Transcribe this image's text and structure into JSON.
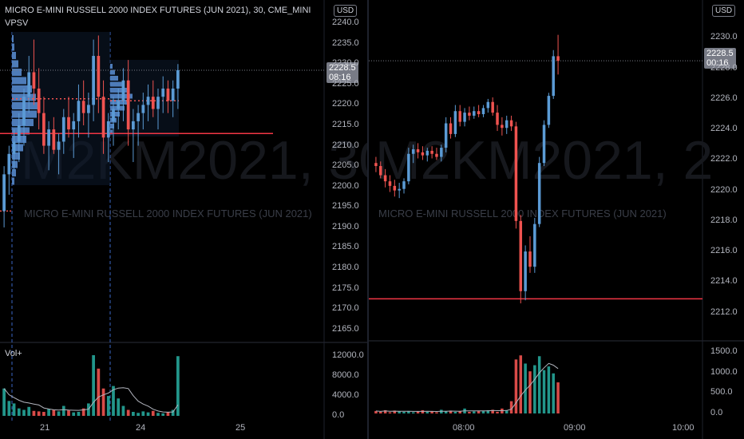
{
  "left": {
    "title": "MICRO E-MINI RUSSELL 2000 INDEX FUTURES (JUN 2021), 30, CME_MINI",
    "indicator": "VPSV",
    "volume_label": "Vol+",
    "currency": "USD",
    "watermark_big": "M2KM2021, 30",
    "watermark_small": "MICRO E-MINI RUSSELL 2000 INDEX FUTURES (JUN 2021)",
    "last_price": "2228.5",
    "countdown": "08:16",
    "price_ticks": [
      "2240.0",
      "2235.0",
      "2230.0",
      "2225.0",
      "2220.0",
      "2215.0",
      "2210.0",
      "2205.0",
      "2200.0",
      "2195.0",
      "2190.0",
      "2185.0",
      "2180.0",
      "2175.0",
      "2170.0",
      "2165.0"
    ],
    "volume_ticks": [
      "12000.0",
      "8000.0",
      "4000.0",
      "0.0"
    ],
    "time_ticks": [
      "21",
      "24",
      "25"
    ],
    "colors": {
      "up": "#5b9bd5",
      "down": "#ef5350",
      "line": "#f23645",
      "vol_up": "#26a69a",
      "vol_down": "#ef5350"
    }
  },
  "right": {
    "currency": "USD",
    "watermark_big": "M2KM2021, 2",
    "watermark_small": "MICRO E-MINI RUSSELL 2000 INDEX FUTURES (JUN 2021)",
    "last_price": "2228.5",
    "countdown": "00:16",
    "price_ticks": [
      "2230.0",
      "2228.0",
      "2226.0",
      "2224.0",
      "2222.0",
      "2220.0",
      "2218.0",
      "2216.0",
      "2214.0",
      "2212.0"
    ],
    "volume_ticks": [
      "1500.0",
      "1000.0",
      "500.0",
      "0.0"
    ],
    "time_ticks": [
      "08:00",
      "09:00",
      "10:00"
    ]
  },
  "chart_data": [
    {
      "type": "candlestick",
      "title": "MICRO E-MINI RUSSELL 2000 INDEX FUTURES (JUN 2021), 30, CME_MINI",
      "x_ticks": [
        "21",
        "24",
        "25"
      ],
      "ylim": [
        2163,
        2241
      ],
      "y_ticks": [
        2240,
        2235,
        2230,
        2225,
        2220,
        2215,
        2210,
        2205,
        2200,
        2195,
        2190,
        2185,
        2180,
        2175,
        2170,
        2165
      ],
      "horizontal_line": 2213,
      "last_price": 2228.5,
      "candles": [
        [
          2194,
          2205,
          2190,
          2203
        ],
        [
          2203,
          2210,
          2198,
          2208
        ],
        [
          2208,
          2214,
          2204,
          2211
        ],
        [
          2211,
          2218,
          2206,
          2215
        ],
        [
          2215,
          2224,
          2210,
          2222
        ],
        [
          2222,
          2232,
          2218,
          2228
        ],
        [
          2228,
          2236,
          2220,
          2224
        ],
        [
          2224,
          2229,
          2214,
          2218
        ],
        [
          2218,
          2222,
          2208,
          2210
        ],
        [
          2210,
          2216,
          2204,
          2214
        ],
        [
          2214,
          2217,
          2208,
          2209
        ],
        [
          2209,
          2213,
          2203,
          2211
        ],
        [
          2211,
          2219,
          2208,
          2217
        ],
        [
          2217,
          2222,
          2212,
          2214
        ],
        [
          2214,
          2218,
          2207,
          2216
        ],
        [
          2216,
          2225,
          2212,
          2221
        ],
        [
          2221,
          2226,
          2215,
          2218
        ],
        [
          2218,
          2223,
          2212,
          2220
        ],
        [
          2220,
          2236,
          2216,
          2232
        ],
        [
          2232,
          2237,
          2218,
          2222
        ],
        [
          2222,
          2226,
          2208,
          2212
        ],
        [
          2212,
          2218,
          2206,
          2216
        ],
        [
          2216,
          2222,
          2210,
          2219
        ],
        [
          2219,
          2224,
          2214,
          2221
        ],
        [
          2221,
          2229,
          2216,
          2226
        ],
        [
          2226,
          2231,
          2210,
          2214
        ],
        [
          2214,
          2219,
          2206,
          2216
        ],
        [
          2216,
          2220,
          2210,
          2218
        ],
        [
          2218,
          2223,
          2214,
          2220
        ],
        [
          2220,
          2225,
          2216,
          2222
        ],
        [
          2222,
          2226,
          2217,
          2219
        ],
        [
          2219,
          2224,
          2214,
          2222
        ],
        [
          2222,
          2227,
          2218,
          2224
        ],
        [
          2224,
          2226,
          2218,
          2221
        ],
        [
          2221,
          2226,
          2217,
          2224
        ],
        [
          2224,
          2230,
          2219,
          2228.5
        ]
      ],
      "volume": {
        "ylim": [
          0,
          13000
        ],
        "y_ticks": [
          12000,
          8000,
          4000,
          0
        ],
        "values": [
          5500,
          3000,
          2500,
          1500,
          1200,
          1800,
          1000,
          900,
          800,
          1400,
          1200,
          900,
          2000,
          1100,
          700,
          800,
          1500,
          2500,
          12200,
          9500,
          5500,
          4000,
          6000,
          3500,
          2000,
          1200,
          800,
          600,
          900,
          700,
          1000,
          600,
          500,
          800,
          1200,
          12000
        ]
      }
    },
    {
      "type": "candlestick",
      "x_ticks": [
        "08:00",
        "09:00",
        "10:00"
      ],
      "ylim": [
        2211.4,
        2230.6
      ],
      "y_ticks": [
        2230,
        2228,
        2226,
        2224,
        2222,
        2220,
        2218,
        2216,
        2214,
        2212
      ],
      "horizontal_line": 2212.9,
      "last_price": 2228.5,
      "candles": [
        [
          2221.8,
          2222.2,
          2221.2,
          2221.6
        ],
        [
          2221.6,
          2221.9,
          2220.8,
          2221.0
        ],
        [
          2221.0,
          2221.4,
          2220.2,
          2220.6
        ],
        [
          2220.6,
          2221.0,
          2219.9,
          2220.3
        ],
        [
          2220.3,
          2220.7,
          2219.6,
          2220.0
        ],
        [
          2220.0,
          2220.5,
          2219.5,
          2220.1
        ],
        [
          2220.1,
          2220.8,
          2219.8,
          2220.6
        ],
        [
          2220.6,
          2222.8,
          2220.4,
          2222.4
        ],
        [
          2222.4,
          2223.0,
          2221.8,
          2222.7
        ],
        [
          2222.7,
          2223.1,
          2222.1,
          2222.5
        ],
        [
          2222.5,
          2222.9,
          2222.0,
          2222.3
        ],
        [
          2222.3,
          2222.8,
          2221.9,
          2222.6
        ],
        [
          2222.6,
          2222.9,
          2222.1,
          2222.4
        ],
        [
          2222.4,
          2222.8,
          2222.0,
          2222.2
        ],
        [
          2222.2,
          2223.0,
          2221.9,
          2222.8
        ],
        [
          2222.8,
          2224.8,
          2222.5,
          2224.4
        ],
        [
          2224.4,
          2224.8,
          2223.4,
          2223.7
        ],
        [
          2223.7,
          2225.6,
          2223.5,
          2225.2
        ],
        [
          2225.2,
          2225.6,
          2224.2,
          2224.5
        ],
        [
          2224.5,
          2225.4,
          2224.2,
          2225.1
        ],
        [
          2225.1,
          2225.5,
          2224.6,
          2224.9
        ],
        [
          2224.9,
          2225.5,
          2224.7,
          2225.2
        ],
        [
          2225.2,
          2225.6,
          2224.8,
          2225.0
        ],
        [
          2225.0,
          2225.6,
          2224.8,
          2225.4
        ],
        [
          2225.4,
          2226.0,
          2225.1,
          2225.8
        ],
        [
          2225.8,
          2226.1,
          2224.9,
          2225.1
        ],
        [
          2225.1,
          2225.6,
          2223.9,
          2224.3
        ],
        [
          2224.3,
          2224.8,
          2223.6,
          2224.1
        ],
        [
          2224.1,
          2224.9,
          2223.7,
          2224.6
        ],
        [
          2224.6,
          2224.9,
          2223.9,
          2224.2
        ],
        [
          2224.2,
          2224.5,
          2217.5,
          2218.0
        ],
        [
          2218.0,
          2218.4,
          2212.6,
          2213.4
        ],
        [
          2213.4,
          2216.4,
          2212.8,
          2216.0
        ],
        [
          2216.0,
          2217.0,
          2214.6,
          2215.0
        ],
        [
          2215.0,
          2218.2,
          2214.6,
          2217.8
        ],
        [
          2217.8,
          2222.2,
          2217.6,
          2221.8
        ],
        [
          2221.8,
          2224.6,
          2221.6,
          2224.3
        ],
        [
          2224.3,
          2226.4,
          2224.1,
          2226.2
        ],
        [
          2226.2,
          2229.2,
          2226.0,
          2228.8
        ],
        [
          2228.8,
          2230.2,
          2227.6,
          2228.5
        ]
      ],
      "volume": {
        "ylim": [
          0,
          1600
        ],
        "y_ticks": [
          1500,
          1000,
          500,
          0
        ],
        "values": [
          60,
          40,
          80,
          30,
          70,
          50,
          40,
          60,
          30,
          50,
          80,
          40,
          60,
          30,
          90,
          50,
          70,
          40,
          60,
          120,
          40,
          50,
          70,
          60,
          80,
          90,
          40,
          120,
          70,
          300,
          1320,
          1420,
          1220,
          1030,
          1180,
          1400,
          1060,
          1150,
          980,
          760
        ]
      }
    }
  ]
}
